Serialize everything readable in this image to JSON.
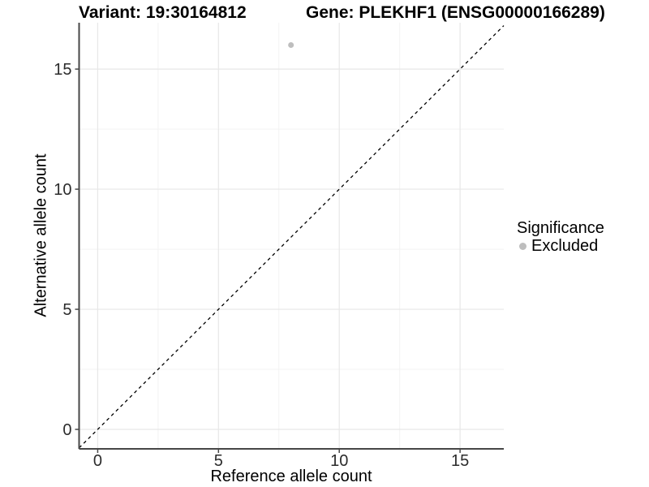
{
  "chart_data": {
    "type": "scatter",
    "titles": {
      "left": "Variant: 19:30164812",
      "right": "Gene: PLEKHF1 (ENSG00000166289)"
    },
    "xlabel": "Reference allele count",
    "ylabel": "Alternative allele count",
    "x_ticks": [
      0,
      5,
      10,
      15
    ],
    "y_ticks": [
      0,
      5,
      10,
      15
    ],
    "xlim": [
      -0.77,
      16.81
    ],
    "ylim": [
      -0.81,
      16.93
    ],
    "grid": {
      "major": true,
      "minor": true
    },
    "reference_line": {
      "slope": 1,
      "intercept": 0,
      "style": "dashed",
      "color": "#000000"
    },
    "series": [
      {
        "name": "Excluded",
        "color": "#bebebe",
        "points": [
          {
            "x": 8,
            "y": 16
          }
        ]
      }
    ],
    "legend": {
      "title": "Significance",
      "position": "right",
      "items": [
        {
          "label": "Excluded",
          "color": "#bebebe"
        }
      ]
    },
    "colors": {
      "grid_major": "#e7e7e7",
      "grid_minor": "#f3f3f3",
      "axis_line": "#474747",
      "tick_mark": "#474747",
      "tick_label": "#2b2b2b",
      "text": "#000000",
      "background": "#ffffff"
    }
  }
}
